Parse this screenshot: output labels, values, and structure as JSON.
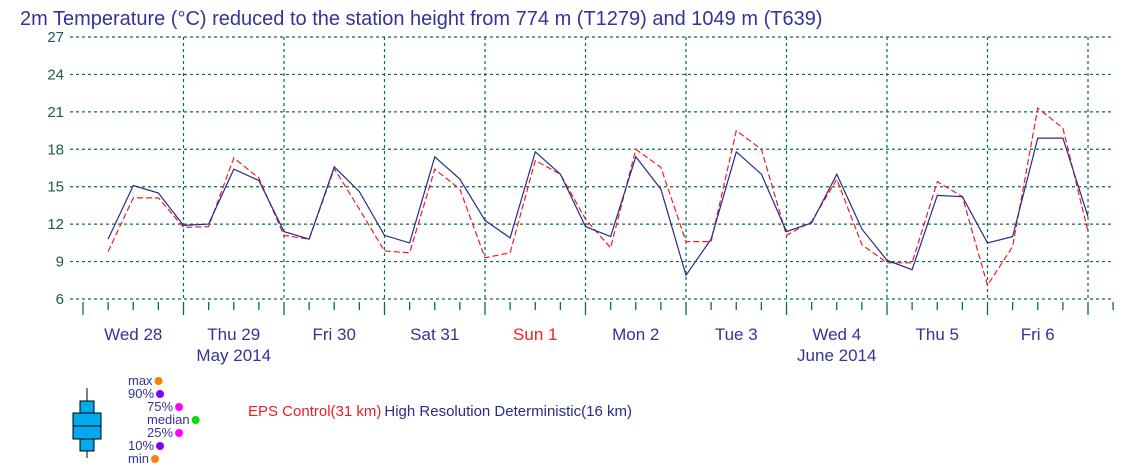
{
  "chart_data": {
    "type": "line",
    "title": "2m Temperature  (°C) reduced to the station height from 774 m (T1279) and 1049 m (T639)",
    "xlabel": "",
    "ylabel": "",
    "ylim": [
      6,
      27
    ],
    "yticks": [
      "6",
      "9",
      "12",
      "15",
      "18",
      "21",
      "24",
      "27"
    ],
    "grid": true,
    "x_start": "Wed 28 06 UTC",
    "x_step_hours": 6,
    "days": [
      {
        "label": "Wed 28",
        "color": "#333399"
      },
      {
        "label": "Thu 29",
        "color": "#333399"
      },
      {
        "label": "Fri 30",
        "color": "#333399"
      },
      {
        "label": "Sat 31",
        "color": "#333399"
      },
      {
        "label": "Sun  1",
        "color": "#ee2222"
      },
      {
        "label": "Mon  2",
        "color": "#333399"
      },
      {
        "label": "Tue  3",
        "color": "#333399"
      },
      {
        "label": "Wed  4",
        "color": "#333399"
      },
      {
        "label": "Thu  5",
        "color": "#333399"
      },
      {
        "label": "Fri  6",
        "color": "#333399"
      }
    ],
    "months": [
      {
        "label": "May 2014",
        "day_index": 1
      },
      {
        "label": "June 2014",
        "day_index": 7
      }
    ],
    "series": [
      {
        "name": "EPS Control(31 km)",
        "color": "#ee1c24",
        "dash": true,
        "values": [
          9.8,
          14.1,
          14.1,
          11.75,
          11.8,
          17.3,
          15.7,
          11.1,
          10.8,
          16.45,
          13.2,
          9.85,
          9.7,
          16.4,
          14.8,
          9.3,
          9.7,
          17.1,
          16.0,
          12.4,
          10.1,
          18.0,
          16.55,
          10.6,
          10.6,
          19.5,
          18.0,
          11.1,
          12.2,
          15.6,
          10.35,
          8.9,
          8.9,
          15.4,
          14.2,
          7.1,
          10.2,
          21.3,
          19.7,
          11.4
        ]
      },
      {
        "name": "High Resolution Deterministic(16 km)",
        "color": "#2a2a8a",
        "dash": false,
        "values": [
          10.8,
          15.1,
          14.5,
          11.9,
          12.0,
          16.4,
          15.5,
          11.4,
          10.8,
          16.6,
          14.6,
          11.1,
          10.5,
          17.4,
          15.6,
          12.3,
          10.9,
          17.8,
          16.0,
          11.8,
          11.0,
          17.4,
          14.8,
          7.9,
          10.8,
          17.8,
          16.0,
          11.4,
          12.1,
          16.0,
          11.6,
          9.1,
          8.35,
          14.3,
          14.2,
          10.5,
          11.0,
          18.9,
          18.9,
          12.6
        ]
      }
    ]
  },
  "legend": {
    "box_labels": [
      {
        "label": "max",
        "color": "#ff8000"
      },
      {
        "label": "90%",
        "color": "#8000ff"
      },
      {
        "label": "75%",
        "color": "#ff00ff"
      },
      {
        "label": "median",
        "color": "#00dd00"
      },
      {
        "label": "25%",
        "color": "#ff00ff"
      },
      {
        "label": "10%",
        "color": "#8000ff"
      },
      {
        "label": "min",
        "color": "#ff8000"
      }
    ],
    "box_color": "#00aaee",
    "eps_label": "EPS Control(31 km)",
    "hres_label": "High Resolution Deterministic(16 km)"
  }
}
